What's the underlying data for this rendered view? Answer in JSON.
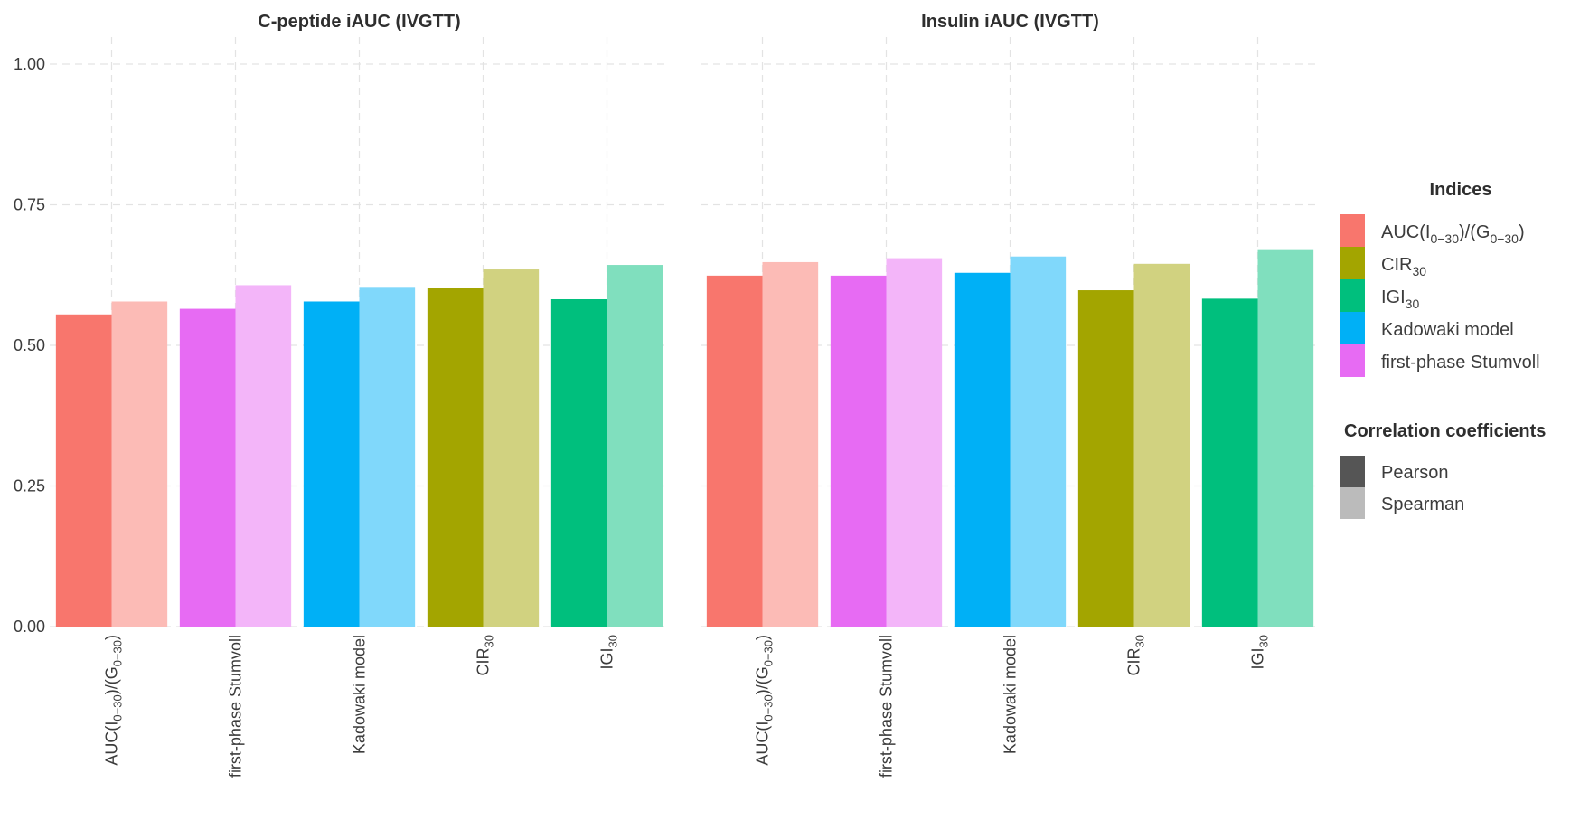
{
  "chart_data": {
    "type": "bar",
    "facets": [
      {
        "title": "C-peptide iAUC (IVGTT)",
        "categories": [
          {
            "key": "auc",
            "label_main": "AUC(I",
            "label_sub": "0−30",
            "label_mid": ")/(G",
            "label_sub2": "0−30",
            "label_end": ")",
            "color": "#F8766D",
            "pearson": 0.555,
            "spearman": 0.578
          },
          {
            "key": "stumvoll",
            "label_main": "first-phase Stumvoll",
            "color": "#E76BF3",
            "pearson": 0.565,
            "spearman": 0.607
          },
          {
            "key": "kadowaki",
            "label_main": "Kadowaki model",
            "color": "#00B0F6",
            "pearson": 0.578,
            "spearman": 0.604
          },
          {
            "key": "cir",
            "label_main": "CIR",
            "label_sub": "30",
            "color": "#A3A500",
            "pearson": 0.602,
            "spearman": 0.635
          },
          {
            "key": "igi",
            "label_main": "IGI",
            "label_sub": "30",
            "color": "#00BF7D",
            "pearson": 0.582,
            "spearman": 0.643
          }
        ]
      },
      {
        "title": "Insulin iAUC (IVGTT)",
        "categories": [
          {
            "key": "auc",
            "label_main": "AUC(I",
            "label_sub": "0−30",
            "label_mid": ")/(G",
            "label_sub2": "0−30",
            "label_end": ")",
            "color": "#F8766D",
            "pearson": 0.624,
            "spearman": 0.648
          },
          {
            "key": "stumvoll",
            "label_main": "first-phase Stumvoll",
            "color": "#E76BF3",
            "pearson": 0.624,
            "spearman": 0.655
          },
          {
            "key": "kadowaki",
            "label_main": "Kadowaki model",
            "color": "#00B0F6",
            "pearson": 0.629,
            "spearman": 0.658
          },
          {
            "key": "cir",
            "label_main": "CIR",
            "label_sub": "30",
            "color": "#A3A500",
            "pearson": 0.598,
            "spearman": 0.645
          },
          {
            "key": "igi",
            "label_main": "IGI",
            "label_sub": "30",
            "color": "#00BF7D",
            "pearson": 0.583,
            "spearman": 0.671
          }
        ]
      }
    ],
    "series": [
      {
        "name": "Pearson",
        "values_ref": "pearson"
      },
      {
        "name": "Spearman",
        "values_ref": "spearman"
      }
    ],
    "ylim": [
      0,
      1.0
    ],
    "yticks": [
      "0.00",
      "0.25",
      "0.50",
      "0.75",
      "1.00"
    ],
    "grid": true,
    "legend_position": "right",
    "legend": {
      "indices_title": "Indices",
      "indices": [
        {
          "label_main": "AUC(I",
          "label_sub": "0−30",
          "label_mid": ")/(G",
          "label_sub2": "0−30",
          "label_end": ")",
          "color": "#F8766D"
        },
        {
          "label_main": "CIR",
          "label_sub": "30",
          "color": "#A3A500"
        },
        {
          "label_main": "IGI",
          "label_sub": "30",
          "color": "#00BF7D"
        },
        {
          "label_main": "Kadowaki model",
          "color": "#00B0F6"
        },
        {
          "label_main": "first-phase Stumvoll",
          "color": "#E76BF3"
        }
      ],
      "corr_title": "Correlation coefficients",
      "corr": [
        {
          "label": "Pearson",
          "color": "#555555"
        },
        {
          "label": "Spearman",
          "color": "#BBBBBB"
        }
      ]
    },
    "colors": {
      "grid": "#E3E3E3",
      "text": "#3C3C3C",
      "title": "#2E2E2E"
    }
  }
}
